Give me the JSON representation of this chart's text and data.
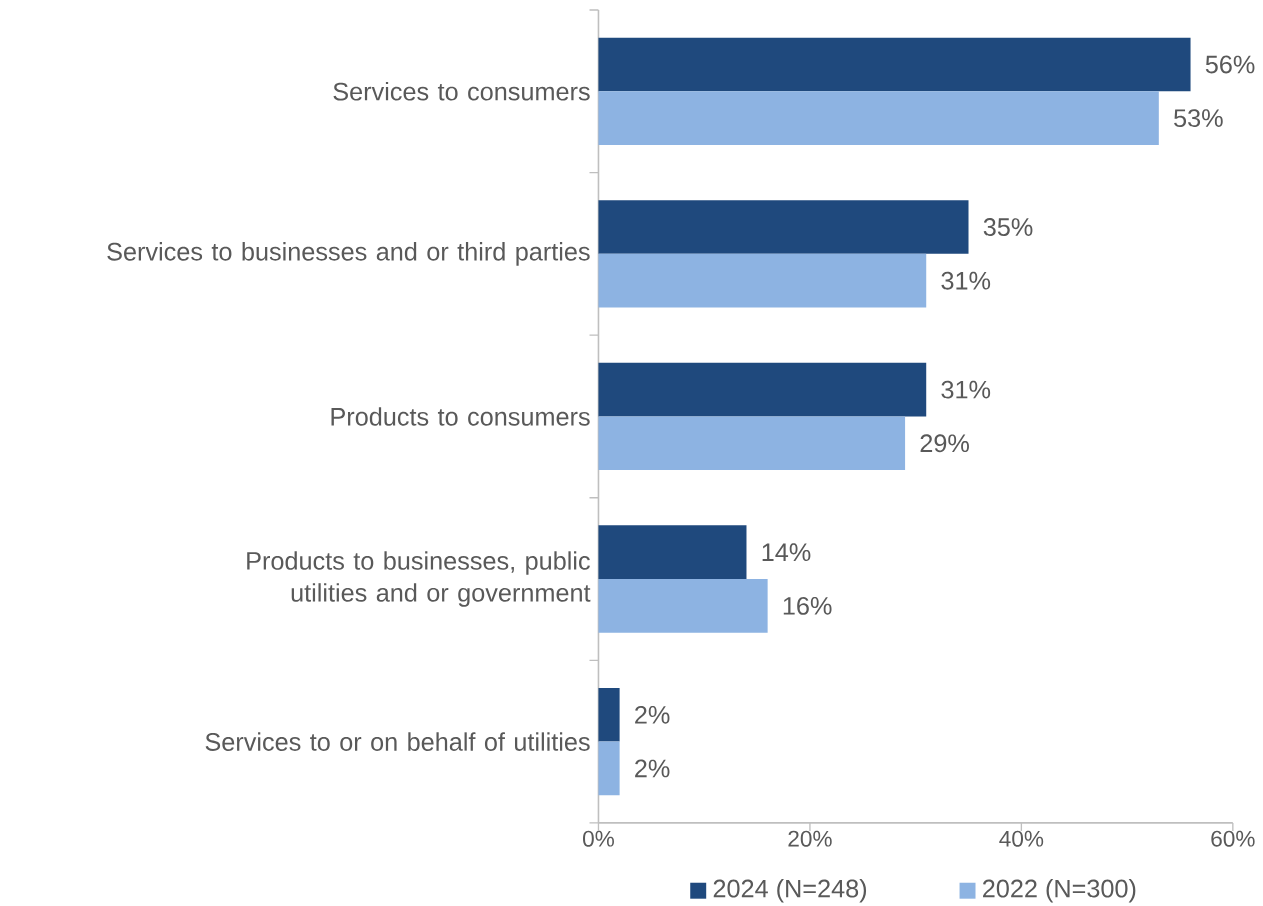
{
  "chart_data": {
    "type": "bar",
    "orientation": "horizontal",
    "categories": [
      "Services to consumers",
      "Services to businesses and or third parties",
      "Products to consumers",
      "Products to businesses, public utilities and or government",
      "Services to or on behalf of utilities"
    ],
    "series": [
      {
        "name": "2024 (N=248)",
        "color": "#1f497d",
        "values": [
          56,
          35,
          31,
          14,
          2
        ],
        "value_labels": [
          "56%",
          "35%",
          "31%",
          "14%",
          "2%"
        ]
      },
      {
        "name": "2022 (N=300)",
        "color": "#8db3e2",
        "values": [
          53,
          31,
          29,
          16,
          2
        ],
        "value_labels": [
          "53%",
          "31%",
          "29%",
          "16%",
          "2%"
        ]
      }
    ],
    "xlim": [
      0,
      60
    ],
    "xticks": [
      {
        "value": 0,
        "label": "0%"
      },
      {
        "value": 20,
        "label": "20%"
      },
      {
        "value": 40,
        "label": "40%"
      },
      {
        "value": 60,
        "label": "60%"
      }
    ],
    "grid": false,
    "legend": "bottom"
  }
}
